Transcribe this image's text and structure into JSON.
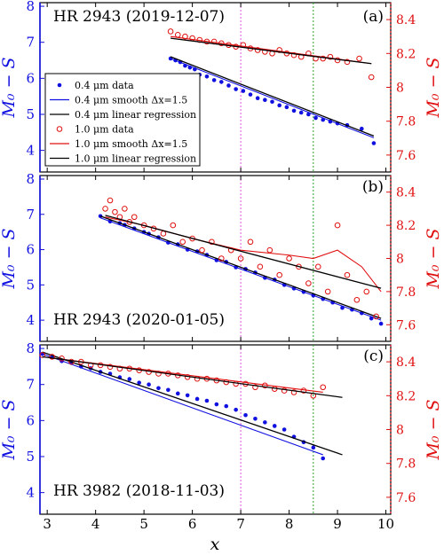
{
  "figure": {
    "xlabel": "x",
    "ylabel_left": "M₀ − S",
    "ylabel_right": "M₀ − S",
    "x_ticks": [
      "3",
      "4",
      "5",
      "6",
      "7",
      "8",
      "9",
      "10"
    ],
    "left_ticks": [
      "4",
      "5",
      "6",
      "7",
      "8"
    ],
    "right_ticks": [
      "7.6",
      "7.8",
      "8",
      "8.2",
      "8.4"
    ],
    "colors": {
      "blue": "#1010e0",
      "red": "#e01010",
      "black": "#000000",
      "magenta": "#dd55dd",
      "green": "#2aa02a"
    }
  },
  "chart_data": [
    {
      "type": "scatter",
      "panel": "(a)",
      "title": "HR 2943 (2019-12-07)",
      "xlim": [
        2.85,
        10.1
      ],
      "ylim_left": [
        3.4,
        8.1
      ],
      "ylim_right": [
        7.5,
        8.5
      ],
      "vlines": [
        7.0,
        8.5
      ],
      "legend": [
        "0.4 μm data",
        "0.4 μm smooth Δx=1.5",
        "0.4 μm linear regression",
        "1.0 μm data",
        "1.0 μm smooth Δx=1.5",
        "1.0 μm linear regression"
      ],
      "series": [
        {
          "name": "0.4 μm data",
          "axis": "left",
          "style": "dot",
          "x": [
            5.55,
            5.65,
            5.75,
            5.85,
            5.95,
            6.05,
            6.15,
            6.3,
            6.45,
            6.6,
            6.75,
            6.9,
            7.05,
            7.2,
            7.35,
            7.5,
            7.65,
            7.8,
            7.95,
            8.1,
            8.25,
            8.4,
            8.55,
            8.7,
            8.85,
            9.0,
            9.2,
            9.5,
            9.75
          ],
          "y": [
            6.55,
            6.5,
            6.45,
            6.35,
            6.3,
            6.25,
            6.1,
            6.05,
            5.95,
            5.9,
            5.8,
            5.7,
            5.65,
            5.55,
            5.45,
            5.4,
            5.35,
            5.25,
            5.2,
            5.1,
            5.05,
            5.0,
            4.9,
            4.85,
            4.8,
            4.75,
            4.7,
            4.6,
            4.2
          ]
        },
        {
          "name": "0.4 μm smooth Δx=1.5",
          "axis": "left",
          "style": "line",
          "x": [
            5.55,
            9.75
          ],
          "y": [
            6.55,
            4.35
          ]
        },
        {
          "name": "0.4 μm linear regression",
          "axis": "left",
          "style": "reg",
          "x": [
            5.55,
            9.75
          ],
          "y": [
            6.6,
            4.4
          ]
        },
        {
          "name": "1.0 μm data",
          "axis": "right",
          "style": "circle",
          "x": [
            5.55,
            5.7,
            5.85,
            6.0,
            6.15,
            6.3,
            6.45,
            6.6,
            6.75,
            6.9,
            7.05,
            7.2,
            7.35,
            7.5,
            7.65,
            7.8,
            7.95,
            8.1,
            8.25,
            8.4,
            8.55,
            8.7,
            8.85,
            9.0,
            9.2,
            9.45,
            9.7
          ],
          "y": [
            8.33,
            8.31,
            8.3,
            8.29,
            8.28,
            8.27,
            8.27,
            8.26,
            8.25,
            8.24,
            8.25,
            8.23,
            8.22,
            8.21,
            8.2,
            8.22,
            8.2,
            8.19,
            8.18,
            8.2,
            8.17,
            8.17,
            8.18,
            8.16,
            8.15,
            8.17,
            8.06
          ]
        },
        {
          "name": "1.0 μm smooth Δx=1.5",
          "axis": "right",
          "style": "line",
          "x": [
            5.55,
            9.7
          ],
          "y": [
            8.3,
            8.14
          ]
        },
        {
          "name": "1.0 μm linear regression",
          "axis": "right",
          "style": "reg",
          "x": [
            5.55,
            9.7
          ],
          "y": [
            8.29,
            8.14
          ]
        }
      ]
    },
    {
      "type": "scatter",
      "panel": "(b)",
      "title": "HR 2943 (2020-01-05)",
      "xlim": [
        2.85,
        10.1
      ],
      "ylim_left": [
        3.4,
        8.1
      ],
      "ylim_right": [
        7.5,
        8.5
      ],
      "vlines": [
        7.0,
        8.5
      ],
      "series": [
        {
          "name": "0.4 μm data",
          "axis": "left",
          "style": "dot",
          "x": [
            4.1,
            4.3,
            4.5,
            4.6,
            4.8,
            5.0,
            5.1,
            5.3,
            5.5,
            5.7,
            5.9,
            6.1,
            6.3,
            6.5,
            6.7,
            6.9,
            7.1,
            7.3,
            7.5,
            7.7,
            7.9,
            8.1,
            8.3,
            8.5,
            8.7,
            8.9,
            9.1,
            9.3,
            9.5,
            9.7,
            9.9
          ],
          "y": [
            6.95,
            6.8,
            6.75,
            6.7,
            6.6,
            6.5,
            6.45,
            6.35,
            6.2,
            6.15,
            6.0,
            5.95,
            5.85,
            5.7,
            5.65,
            5.5,
            5.45,
            5.35,
            5.2,
            5.15,
            5.0,
            4.9,
            4.8,
            4.7,
            4.6,
            4.5,
            4.35,
            4.3,
            4.2,
            4.05,
            3.9
          ]
        },
        {
          "name": "0.4 μm smooth Δx=1.5",
          "axis": "left",
          "style": "line",
          "x": [
            4.1,
            9.9
          ],
          "y": [
            6.9,
            4.0
          ]
        },
        {
          "name": "0.4 μm linear regression",
          "axis": "left",
          "style": "reg",
          "x": [
            4.1,
            9.9
          ],
          "y": [
            6.95,
            4.05
          ]
        },
        {
          "name": "1.0 μm data",
          "axis": "right",
          "style": "circle",
          "x": [
            4.2,
            4.3,
            4.4,
            4.5,
            4.6,
            4.7,
            4.8,
            5.0,
            5.2,
            5.4,
            5.6,
            5.8,
            6.0,
            6.2,
            6.4,
            6.6,
            6.8,
            7.0,
            7.2,
            7.4,
            7.6,
            7.8,
            8.0,
            8.2,
            8.4,
            8.6,
            8.8,
            9.0,
            9.2,
            9.4,
            9.6,
            9.8
          ],
          "y": [
            8.3,
            8.35,
            8.28,
            8.25,
            8.3,
            8.22,
            8.25,
            8.2,
            8.18,
            8.15,
            8.2,
            8.1,
            8.12,
            8.05,
            8.1,
            8.0,
            8.05,
            8.0,
            8.1,
            7.95,
            8.05,
            7.9,
            8.0,
            7.95,
            7.85,
            7.95,
            7.8,
            8.2,
            7.9,
            7.75,
            7.8,
            7.65
          ]
        },
        {
          "name": "1.0 μm smooth Δx=1.5",
          "axis": "right",
          "style": "line",
          "x": [
            4.2,
            5.0,
            6.0,
            7.0,
            8.0,
            8.5,
            9.0,
            9.5,
            9.9
          ],
          "y": [
            8.25,
            8.2,
            8.12,
            8.05,
            8.02,
            8.0,
            8.05,
            7.95,
            7.8
          ]
        },
        {
          "name": "1.0 μm linear regression",
          "axis": "right",
          "style": "reg",
          "x": [
            4.2,
            9.9
          ],
          "y": [
            8.26,
            7.82
          ]
        }
      ]
    },
    {
      "type": "scatter",
      "panel": "(c)",
      "title": "HR 3982 (2018-11-03)",
      "xlim": [
        2.85,
        10.1
      ],
      "ylim_left": [
        3.4,
        8.1
      ],
      "ylim_right": [
        7.5,
        8.5
      ],
      "vlines": [
        7.0,
        8.5
      ],
      "series": [
        {
          "name": "0.4 μm data",
          "axis": "left",
          "style": "dot",
          "x": [
            2.9,
            3.1,
            3.3,
            3.5,
            3.7,
            3.9,
            4.1,
            4.3,
            4.5,
            4.7,
            4.9,
            5.1,
            5.3,
            5.5,
            5.7,
            5.9,
            6.1,
            6.3,
            6.5,
            6.7,
            6.9,
            7.1,
            7.3,
            7.5,
            7.7,
            7.9,
            8.1,
            8.3,
            8.5,
            8.7
          ],
          "y": [
            7.85,
            7.75,
            7.65,
            7.6,
            7.5,
            7.45,
            7.35,
            7.3,
            7.2,
            7.15,
            7.05,
            7.0,
            6.9,
            6.85,
            6.75,
            6.7,
            6.6,
            6.55,
            6.45,
            6.4,
            6.3,
            6.15,
            6.05,
            5.95,
            5.85,
            5.75,
            5.55,
            5.4,
            5.25,
            4.95
          ]
        },
        {
          "name": "0.4 μm smooth Δx=1.5",
          "axis": "left",
          "style": "line",
          "x": [
            2.9,
            8.7
          ],
          "y": [
            7.85,
            5.05
          ]
        },
        {
          "name": "0.4 μm linear regression",
          "axis": "left",
          "style": "reg",
          "x": [
            2.9,
            9.1
          ],
          "y": [
            7.9,
            5.05
          ]
        },
        {
          "name": "1.0 μm data",
          "axis": "right",
          "style": "circle",
          "x": [
            2.9,
            3.1,
            3.3,
            3.5,
            3.7,
            3.9,
            4.1,
            4.3,
            4.5,
            4.7,
            4.9,
            5.1,
            5.3,
            5.5,
            5.7,
            5.9,
            6.1,
            6.3,
            6.5,
            6.7,
            6.9,
            7.1,
            7.3,
            7.5,
            7.7,
            7.9,
            8.1,
            8.3,
            8.5,
            8.7
          ],
          "y": [
            8.44,
            8.43,
            8.42,
            8.4,
            8.4,
            8.38,
            8.38,
            8.37,
            8.36,
            8.36,
            8.35,
            8.34,
            8.33,
            8.33,
            8.32,
            8.31,
            8.3,
            8.3,
            8.29,
            8.28,
            8.27,
            8.27,
            8.25,
            8.26,
            8.24,
            8.23,
            8.22,
            8.23,
            8.2,
            8.25
          ]
        },
        {
          "name": "1.0 μm smooth Δx=1.5",
          "axis": "right",
          "style": "line",
          "x": [
            2.9,
            8.7
          ],
          "y": [
            8.43,
            8.22
          ]
        },
        {
          "name": "1.0 μm linear regression",
          "axis": "right",
          "style": "reg",
          "x": [
            2.9,
            9.1
          ],
          "y": [
            8.43,
            8.19
          ]
        }
      ]
    }
  ]
}
